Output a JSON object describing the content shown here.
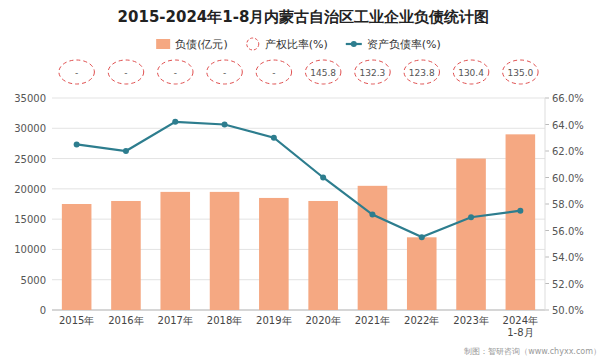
{
  "chart_data": {
    "type": "bar",
    "title": "2015-2024年1-8月内蒙古自治区工业企业负债统计图",
    "categories": [
      "2015年",
      "2016年",
      "2017年",
      "2018年",
      "2019年",
      "2020年",
      "2021年",
      "2022年",
      "2023年",
      "2024年\n1-8月"
    ],
    "series": [
      {
        "name": "负债(亿元)",
        "type": "bar",
        "color": "#F5A882",
        "values": [
          17500,
          18000,
          19500,
          19500,
          18500,
          18000,
          20500,
          12000,
          25000,
          29000
        ]
      },
      {
        "name": "产权比率(%)",
        "type": "scatter",
        "marker": "ellipse",
        "line_style": "dashed",
        "color": "#E05050",
        "data_labels": true,
        "values": [
          null,
          null,
          null,
          null,
          null,
          145.8,
          132.3,
          123.8,
          130.4,
          135.0
        ],
        "value_labels": [
          "-",
          "-",
          "-",
          "-",
          "-",
          "145.8",
          "132.3",
          "123.8",
          "130.4",
          "135.0"
        ]
      },
      {
        "name": "资产负债率(%)",
        "type": "line",
        "axis": "y2",
        "marker": "circle",
        "color": "#2D7D8E",
        "values": [
          62.5,
          62.0,
          64.2,
          64.0,
          63.0,
          60.0,
          57.2,
          55.5,
          57.0,
          57.5
        ]
      }
    ],
    "ylim": [
      0,
      35000
    ],
    "yticks": [
      0,
      5000,
      10000,
      15000,
      20000,
      25000,
      30000,
      35000
    ],
    "y2lim": [
      50.0,
      66.0
    ],
    "y2ticks": [
      {
        "value": 50.0,
        "label": "50.0%"
      },
      {
        "value": 52.0,
        "label": "52.0%"
      },
      {
        "value": 54.0,
        "label": "54.0%"
      },
      {
        "value": 56.0,
        "label": "56.0%"
      },
      {
        "value": 58.0,
        "label": "58.0%"
      },
      {
        "value": 60.0,
        "label": "60.0%"
      },
      {
        "value": 62.0,
        "label": "62.0%"
      },
      {
        "value": 64.0,
        "label": "64.0%"
      },
      {
        "value": 66.0,
        "label": "66.0%"
      }
    ],
    "grid": true,
    "legend": "top",
    "annotations": [
      "制图：智研咨询（www.chyxx.com）"
    ]
  }
}
